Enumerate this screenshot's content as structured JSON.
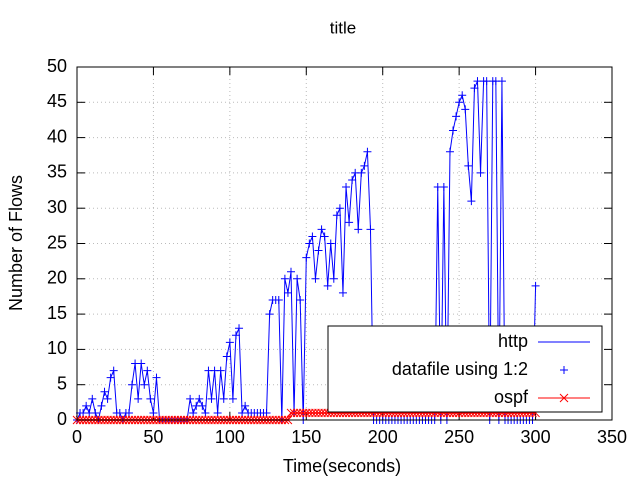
{
  "chart_data": {
    "type": "line",
    "title": "title",
    "x_label": "Time(seconds)",
    "y_label": "Number of Flows",
    "xlim": [
      0,
      350
    ],
    "xticks": [
      0,
      50,
      100,
      150,
      200,
      250,
      300,
      350
    ],
    "ylim": [
      0,
      50
    ],
    "yticks": [
      0,
      5,
      10,
      15,
      20,
      25,
      30,
      35,
      40,
      45,
      50
    ],
    "grid": true,
    "legend": "bottom-right",
    "x": [
      0,
      2,
      4,
      6,
      8,
      10,
      12,
      14,
      16,
      18,
      20,
      22,
      24,
      26,
      28,
      30,
      32,
      34,
      36,
      38,
      40,
      42,
      44,
      46,
      48,
      50,
      52,
      54,
      56,
      58,
      60,
      62,
      64,
      66,
      68,
      70,
      72,
      74,
      76,
      78,
      80,
      82,
      84,
      86,
      88,
      90,
      92,
      94,
      96,
      98,
      100,
      102,
      104,
      106,
      108,
      110,
      112,
      114,
      116,
      118,
      120,
      122,
      124,
      126,
      128,
      130,
      132,
      134,
      136,
      138,
      140,
      142,
      144,
      146,
      148,
      150,
      152,
      154,
      156,
      158,
      160,
      162,
      164,
      166,
      168,
      170,
      172,
      174,
      176,
      178,
      180,
      182,
      184,
      186,
      188,
      190,
      192,
      194,
      196,
      198,
      200,
      202,
      204,
      206,
      208,
      210,
      212,
      214,
      216,
      218,
      220,
      222,
      224,
      226,
      228,
      230,
      232,
      234,
      236,
      238,
      240,
      242,
      244,
      246,
      248,
      250,
      252,
      254,
      256,
      258,
      260,
      262,
      264,
      266,
      268,
      270,
      272,
      274,
      276,
      278,
      280,
      282,
      284,
      286,
      288,
      290,
      292,
      294,
      296,
      298,
      300
    ],
    "series": [
      {
        "name": "http",
        "color": "#0000ff",
        "style": "line",
        "values": [
          0,
          1,
          1,
          2,
          1,
          3,
          1,
          0,
          2,
          4,
          3,
          6,
          7,
          1,
          1,
          0,
          1,
          1,
          5,
          8,
          3,
          8,
          5,
          7,
          3,
          1,
          6,
          0,
          0,
          0,
          0,
          0,
          0,
          0,
          0,
          0,
          0,
          3,
          1,
          2,
          3,
          2,
          1,
          7,
          3,
          7,
          1,
          7,
          3,
          9,
          11,
          3,
          12,
          13,
          1,
          2,
          1,
          1,
          1,
          1,
          1,
          1,
          1,
          15,
          17,
          17,
          17,
          0,
          20,
          18,
          21,
          1,
          20,
          17,
          0,
          23,
          25,
          26,
          20,
          24,
          27,
          26,
          19,
          25,
          20,
          29,
          30,
          18,
          33,
          28,
          34,
          35,
          27,
          35,
          36,
          38,
          27,
          0,
          0,
          0,
          0,
          0,
          0,
          0,
          0,
          0,
          0,
          0,
          0,
          0,
          0,
          0,
          0,
          0,
          0,
          0,
          0,
          0,
          33,
          0,
          33,
          0,
          38,
          41,
          43,
          45,
          46,
          44,
          36,
          31,
          47,
          48,
          35,
          48,
          48,
          0,
          48,
          48,
          0,
          48,
          0,
          0,
          0,
          0,
          0,
          0,
          0,
          0,
          0,
          0,
          19
        ]
      },
      {
        "name": "datafile using 1:2",
        "color": "#0000ff",
        "style": "points",
        "marker": "+",
        "values": [
          0,
          1,
          1,
          2,
          1,
          3,
          1,
          0,
          2,
          4,
          3,
          6,
          7,
          1,
          1,
          0,
          1,
          1,
          5,
          8,
          3,
          8,
          5,
          7,
          3,
          1,
          6,
          0,
          0,
          0,
          0,
          0,
          0,
          0,
          0,
          0,
          0,
          3,
          1,
          2,
          3,
          2,
          1,
          7,
          3,
          7,
          1,
          7,
          3,
          9,
          11,
          3,
          12,
          13,
          1,
          2,
          1,
          1,
          1,
          1,
          1,
          1,
          1,
          15,
          17,
          17,
          17,
          0,
          20,
          18,
          21,
          1,
          20,
          17,
          0,
          23,
          25,
          26,
          20,
          24,
          27,
          26,
          19,
          25,
          20,
          29,
          30,
          18,
          33,
          28,
          34,
          35,
          27,
          35,
          36,
          38,
          27,
          0,
          0,
          0,
          0,
          0,
          0,
          0,
          0,
          0,
          0,
          0,
          0,
          0,
          0,
          0,
          0,
          0,
          0,
          0,
          0,
          0,
          33,
          0,
          33,
          0,
          38,
          41,
          43,
          45,
          46,
          44,
          36,
          31,
          47,
          48,
          35,
          48,
          48,
          0,
          48,
          48,
          0,
          48,
          0,
          0,
          0,
          0,
          0,
          0,
          0,
          0,
          0,
          0,
          19
        ]
      },
      {
        "name": "ospf",
        "color": "#ff0000",
        "style": "linespoints",
        "marker": "x",
        "values": [
          0,
          0,
          0,
          0,
          0,
          0,
          0,
          0,
          0,
          0,
          0,
          0,
          0,
          0,
          0,
          0,
          0,
          0,
          0,
          0,
          0,
          0,
          0,
          0,
          0,
          0,
          0,
          0,
          0,
          0,
          0,
          0,
          0,
          0,
          0,
          0,
          0,
          0,
          0,
          0,
          0,
          0,
          0,
          0,
          0,
          0,
          0,
          0,
          0,
          0,
          0,
          0,
          0,
          0,
          0,
          0,
          0,
          0,
          0,
          0,
          0,
          0,
          0,
          0,
          0,
          0,
          0,
          0,
          0,
          0,
          1,
          1,
          1,
          1,
          1,
          1,
          1,
          1,
          1,
          1,
          1,
          1,
          1,
          1,
          1,
          1,
          1,
          1,
          1,
          1,
          1,
          1,
          1,
          1,
          1,
          1,
          1,
          1,
          1,
          1,
          1,
          1,
          1,
          1,
          1,
          1,
          1,
          1,
          1,
          1,
          1,
          1,
          1,
          1,
          1,
          1,
          1,
          1,
          1,
          1,
          1,
          1,
          1,
          1,
          1,
          1,
          1,
          1,
          1,
          1,
          1,
          1,
          1,
          1,
          1,
          1,
          1,
          1,
          1,
          1,
          1,
          1,
          1,
          1,
          1,
          1,
          1,
          1,
          1,
          1,
          1
        ]
      }
    ]
  }
}
